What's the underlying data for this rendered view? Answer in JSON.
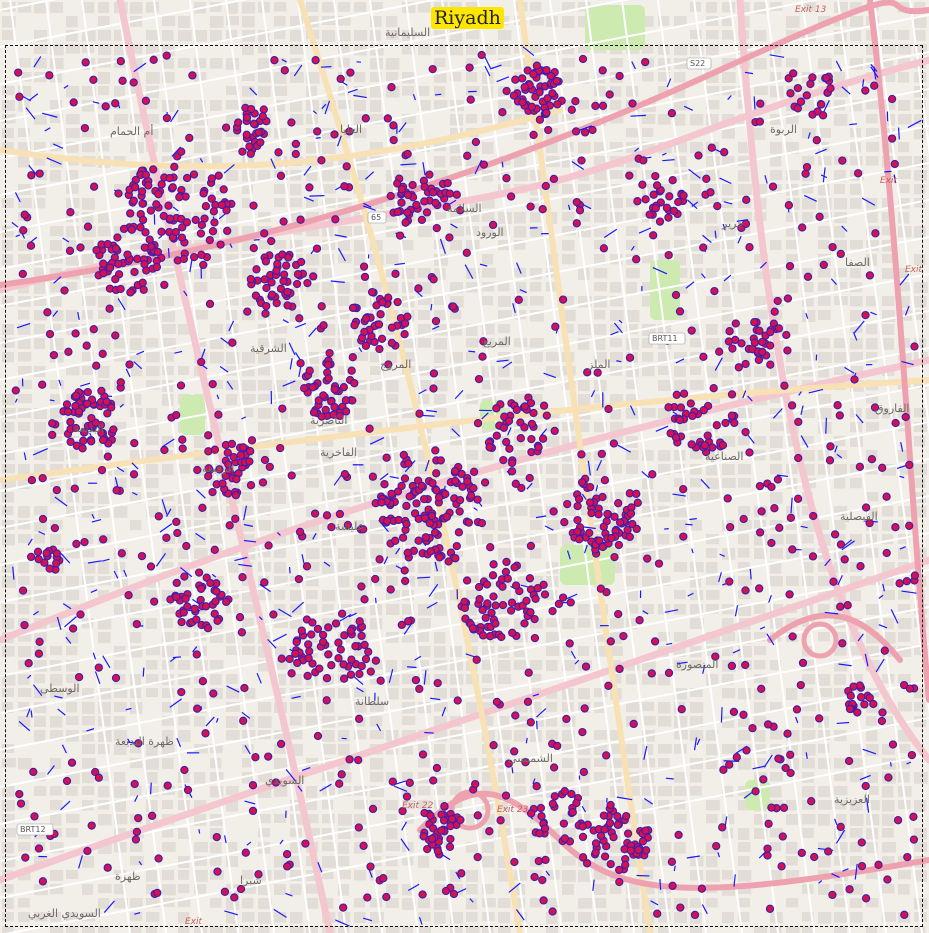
{
  "title": "Riyadh",
  "colors": {
    "land": "#f2efe9",
    "block": "#e2ded7",
    "minor_road": "#ffffff",
    "major_road": "#f4c7cf",
    "motorway": "#eea2b0",
    "secondary_road": "#f7e1b5",
    "park": "#cdebb0",
    "point_fill": "#d6114d",
    "point_stroke": "#3a1fb0",
    "segment": "#1a1aff",
    "title_bg": "#ffe600"
  },
  "place_labels": [
    "السليمانية",
    "أم الحمام",
    "العليا",
    "الربوة",
    "السلامة",
    "الورود",
    "جرير",
    "الصفا",
    "المروج",
    "الملز",
    "الفاروق",
    "الشرقية",
    "الرفيعة",
    "الفاخرية",
    "المربع",
    "الصناعية",
    "الفيصلية",
    "عليشة",
    "المنصورة",
    "السويدي",
    "الشميسي",
    "سلطانة",
    "العزيزية",
    "الوسطى",
    "ظهرة البديعة",
    "ظهرة",
    "شبرا",
    "السويدي الغربي",
    "الناصرية",
    "البديعة"
  ],
  "exit_labels": [
    "Exit 13",
    "Exit",
    "Exit 22",
    "Exit 23",
    "Exit",
    "Exit"
  ],
  "road_shields": [
    "S22",
    "BRT11",
    "BRT12",
    "65"
  ]
}
